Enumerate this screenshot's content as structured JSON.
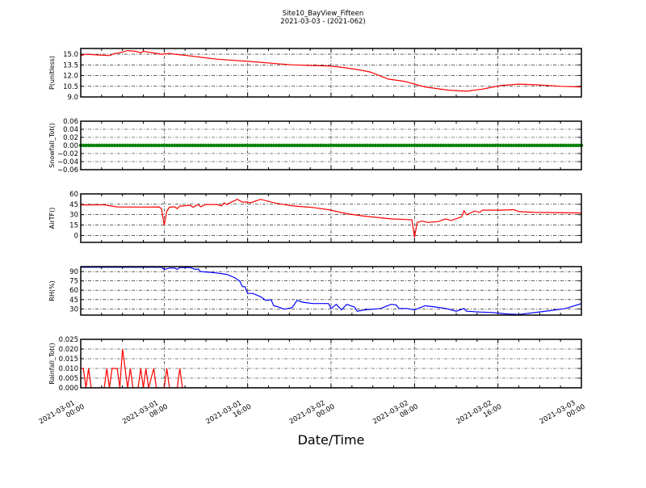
{
  "chart_data": {
    "type": "line",
    "title": "Site10_BayView_Fifteen",
    "subtitle": "2021-03-03 - (2021-062)",
    "xlabel": "Date/Time",
    "xlim": [
      "2021-03-01 00:00",
      "2021-03-03 00:00"
    ],
    "xticks": [
      {
        "date": "2021-03-01",
        "time": "00:00",
        "x": "2021-03-01 00:00"
      },
      {
        "date": "2021-03-01",
        "time": "08:00",
        "x": "2021-03-01 08:00"
      },
      {
        "date": "2021-03-01",
        "time": "16:00",
        "x": "2021-03-01 16:00"
      },
      {
        "date": "2021-03-02",
        "time": "00:00",
        "x": "2021-03-02 00:00"
      },
      {
        "date": "2021-03-02",
        "time": "08:00",
        "x": "2021-03-02 08:00"
      },
      {
        "date": "2021-03-02",
        "time": "16:00",
        "x": "2021-03-02 16:00"
      },
      {
        "date": "2021-03-03",
        "time": "00:00",
        "x": "2021-03-03 00:00"
      }
    ],
    "grid": true,
    "panels": [
      {
        "ylabel": "P(unitless)",
        "color": "#ff0000",
        "style": "line",
        "ylim": [
          9.0,
          15.8
        ],
        "yticks": [
          9.0,
          10.5,
          12.0,
          13.5,
          15.0
        ],
        "ytick_labels": [
          "9.0",
          "10.5",
          "12.0",
          "13.5",
          "15.0"
        ],
        "x": [
          "2021-03-01 00:00",
          "2021-03-01 00:30",
          "2021-03-01 02:45",
          "2021-03-01 03:15",
          "2021-03-01 03:45",
          "2021-03-01 04:30",
          "2021-03-01 05:15",
          "2021-03-01 05:45",
          "2021-03-01 06:00",
          "2021-03-01 07:45",
          "2021-03-01 08:30",
          "2021-03-01 09:00",
          "2021-03-01 10:15",
          "2021-03-01 13:00",
          "2021-03-01 16:00",
          "2021-03-01 20:15",
          "2021-03-01 23:45",
          "2021-03-02 00:45",
          "2021-03-02 02:30",
          "2021-03-02 03:45",
          "2021-03-02 05:30",
          "2021-03-02 07:00",
          "2021-03-02 09:00",
          "2021-03-02 11:15",
          "2021-03-02 13:00",
          "2021-03-02 14:30",
          "2021-03-02 16:15",
          "2021-03-02 18:00",
          "2021-03-02 19:45",
          "2021-03-02 22:00",
          "2021-03-03 00:00"
        ],
        "y": [
          14.8,
          15.0,
          14.8,
          15.1,
          15.2,
          15.5,
          15.4,
          15.2,
          15.4,
          15.0,
          15.1,
          15.0,
          14.8,
          14.3,
          14.0,
          13.5,
          13.35,
          13.2,
          12.85,
          12.5,
          11.5,
          11.2,
          10.4,
          9.95,
          9.8,
          10.1,
          10.6,
          10.8,
          10.7,
          10.5,
          10.4
        ]
      },
      {
        "ylabel": "Snowfall_Tot()",
        "color": "#008000",
        "style": "line+markers",
        "ylim": [
          -0.06,
          0.06
        ],
        "yticks": [
          -0.06,
          -0.04,
          -0.02,
          0.0,
          0.02,
          0.04,
          0.06
        ],
        "ytick_labels": [
          "−0.06",
          "−0.04",
          "−0.02",
          "0.00",
          "0.02",
          "0.04",
          "0.06"
        ],
        "constant_value": 0.0,
        "sample_interval_minutes": 15
      },
      {
        "ylabel": "AirTF()",
        "color": "#ff0000",
        "style": "line",
        "ylim": [
          -10,
          60
        ],
        "yticks": [
          0,
          15,
          30,
          45,
          60
        ],
        "ytick_labels": [
          "0",
          "15",
          "30",
          "45",
          "60"
        ],
        "x": [
          "2021-03-01 00:00",
          "2021-03-01 02:15",
          "2021-03-01 03:30",
          "2021-03-01 06:00",
          "2021-03-01 07:30",
          "2021-03-01 07:45",
          "2021-03-01 08:00",
          "2021-03-01 08:15",
          "2021-03-01 08:30",
          "2021-03-01 09:00",
          "2021-03-01 09:15",
          "2021-03-01 09:30",
          "2021-03-01 10:30",
          "2021-03-01 10:45",
          "2021-03-01 11:15",
          "2021-03-01 11:30",
          "2021-03-01 12:00",
          "2021-03-01 13:00",
          "2021-03-01 13:30",
          "2021-03-01 13:45",
          "2021-03-01 14:00",
          "2021-03-01 15:00",
          "2021-03-01 15:30",
          "2021-03-01 16:00",
          "2021-03-01 16:15",
          "2021-03-01 17:15",
          "2021-03-01 18:45",
          "2021-03-01 20:30",
          "2021-03-01 22:15",
          "2021-03-01 23:45",
          "2021-03-02 01:30",
          "2021-03-02 03:15",
          "2021-03-02 05:45",
          "2021-03-02 07:45",
          "2021-03-02 08:00",
          "2021-03-02 08:15",
          "2021-03-02 08:45",
          "2021-03-02 09:15",
          "2021-03-02 10:15",
          "2021-03-02 11:00",
          "2021-03-02 11:30",
          "2021-03-02 12:30",
          "2021-03-02 12:45",
          "2021-03-02 13:00",
          "2021-03-02 13:45",
          "2021-03-02 14:15",
          "2021-03-02 14:30",
          "2021-03-02 16:15",
          "2021-03-02 17:30",
          "2021-03-02 18:00",
          "2021-03-02 19:30",
          "2021-03-03 00:00"
        ],
        "y": [
          44,
          44.3,
          41.2,
          41,
          41.2,
          38.4,
          15,
          35,
          40.8,
          41.5,
          38.8,
          42.4,
          43.5,
          40.8,
          44.7,
          41.5,
          44.7,
          44.7,
          42.7,
          47,
          44.7,
          52.2,
          48.2,
          48.2,
          47,
          52.2,
          46.3,
          42.4,
          40.4,
          37.3,
          31.4,
          27.8,
          23.9,
          22.7,
          -2.7,
          18.8,
          20.8,
          18.8,
          20,
          23.9,
          21.6,
          26.7,
          35.7,
          29.8,
          35.3,
          33.3,
          36.5,
          36.5,
          37.3,
          34.5,
          33.3,
          32.5
        ]
      },
      {
        "ylabel": "RH(%)",
        "color": "#0000ff",
        "style": "line",
        "ylim": [
          20,
          98
        ],
        "yticks": [
          30,
          45,
          60,
          75,
          90
        ],
        "ytick_labels": [
          "30",
          "45",
          "60",
          "75",
          "90"
        ],
        "x": [
          "2021-03-01 00:00",
          "2021-03-01 07:45",
          "2021-03-01 08:00",
          "2021-03-01 08:30",
          "2021-03-01 09:00",
          "2021-03-01 09:15",
          "2021-03-01 09:30",
          "2021-03-01 10:30",
          "2021-03-01 11:00",
          "2021-03-01 11:15",
          "2021-03-01 11:30",
          "2021-03-01 12:15",
          "2021-03-01 13:00",
          "2021-03-01 14:00",
          "2021-03-01 14:45",
          "2021-03-01 15:15",
          "2021-03-01 15:30",
          "2021-03-01 15:45",
          "2021-03-01 16:00",
          "2021-03-01 16:30",
          "2021-03-01 17:15",
          "2021-03-01 17:45",
          "2021-03-01 18:15",
          "2021-03-01 18:30",
          "2021-03-01 19:00",
          "2021-03-01 19:30",
          "2021-03-01 20:15",
          "2021-03-01 20:45",
          "2021-03-01 21:15",
          "2021-03-01 22:15",
          "2021-03-01 23:45",
          "2021-03-02 00:00",
          "2021-03-02 00:30",
          "2021-03-02 01:00",
          "2021-03-02 01:30",
          "2021-03-02 02:15",
          "2021-03-02 02:30",
          "2021-03-02 03:15",
          "2021-03-02 04:45",
          "2021-03-02 05:45",
          "2021-03-02 06:15",
          "2021-03-02 06:30",
          "2021-03-02 07:15",
          "2021-03-02 08:00",
          "2021-03-02 09:00",
          "2021-03-02 09:45",
          "2021-03-02 11:00",
          "2021-03-02 12:00",
          "2021-03-02 12:45",
          "2021-03-02 13:00",
          "2021-03-02 14:15",
          "2021-03-02 15:30",
          "2021-03-02 16:45",
          "2021-03-02 18:00",
          "2021-03-02 21:00",
          "2021-03-02 22:30",
          "2021-03-03 00:00"
        ],
        "y": [
          97,
          97,
          93.5,
          95.6,
          95.6,
          93.5,
          96.5,
          96.5,
          93.5,
          94.4,
          90,
          89,
          87.8,
          85.5,
          80.3,
          74.6,
          65.8,
          65.8,
          54.8,
          54.8,
          49.5,
          43.8,
          44.7,
          35,
          32.9,
          29.4,
          32,
          43.8,
          40.8,
          38.6,
          38.6,
          30.7,
          37.3,
          28.5,
          37.3,
          32.9,
          26.3,
          28.5,
          30.7,
          37.3,
          36.4,
          30.7,
          30.7,
          28.5,
          35,
          33.7,
          30.7,
          26.3,
          30.7,
          26.3,
          25,
          24.1,
          22,
          21,
          27.2,
          30.7,
          38.6
        ]
      },
      {
        "ylabel": "Rainfall_Tot()",
        "color": "#ff0000",
        "style": "line",
        "ylim": [
          0,
          0.025
        ],
        "yticks": [
          0,
          0.005,
          0.01,
          0.015,
          0.02,
          0.025
        ],
        "ytick_labels": [
          "0.000",
          "0.005",
          "0.010",
          "0.015",
          "0.020",
          "0.025"
        ],
        "x": [
          "2021-03-01 00:00",
          "2021-03-01 00:15",
          "2021-03-01 00:30",
          "2021-03-01 00:45",
          "2021-03-01 01:00",
          "2021-03-01 02:15",
          "2021-03-01 02:30",
          "2021-03-01 02:45",
          "2021-03-01 03:00",
          "2021-03-01 03:30",
          "2021-03-01 03:45",
          "2021-03-01 04:00",
          "2021-03-01 04:30",
          "2021-03-01 04:45",
          "2021-03-01 05:00",
          "2021-03-01 05:30",
          "2021-03-01 05:45",
          "2021-03-01 06:00",
          "2021-03-01 06:15",
          "2021-03-01 06:30",
          "2021-03-01 07:00",
          "2021-03-01 07:15",
          "2021-03-01 08:00",
          "2021-03-01 08:15",
          "2021-03-01 08:30",
          "2021-03-01 09:15",
          "2021-03-01 09:30",
          "2021-03-01 09:45",
          "2021-03-03 00:00"
        ],
        "y": [
          0.01,
          0.01,
          0,
          0.01,
          0,
          0,
          0.01,
          0,
          0.01,
          0.01,
          0,
          0.02,
          0,
          0.01,
          0,
          0,
          0.01,
          0,
          0.01,
          0,
          0.01,
          0,
          0,
          0.01,
          0,
          0,
          0.01,
          0,
          0
        ]
      }
    ]
  }
}
